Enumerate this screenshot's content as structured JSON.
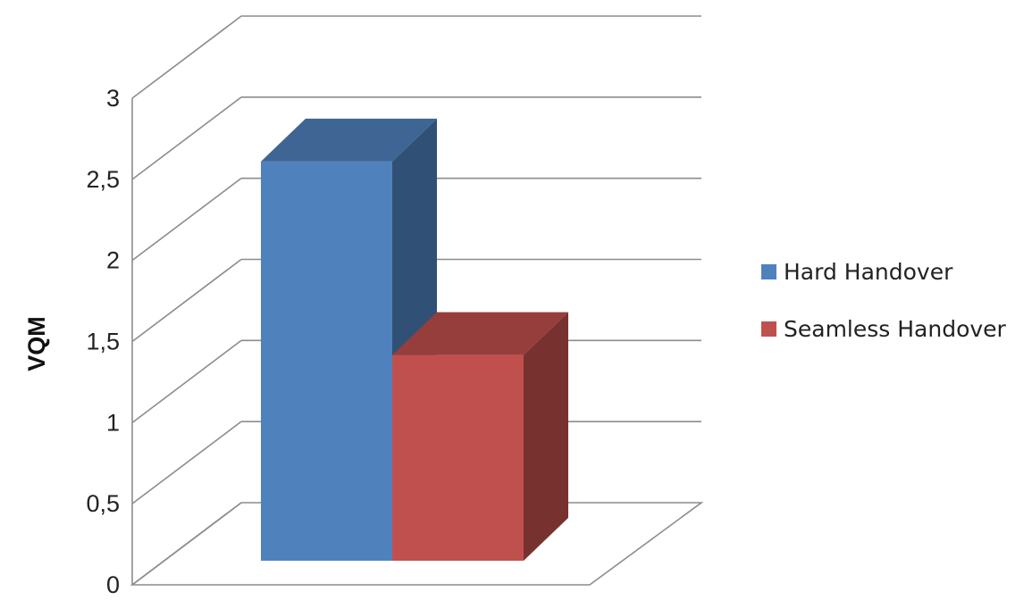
{
  "chart_data": {
    "type": "bar",
    "categories": [
      ""
    ],
    "series": [
      {
        "name": "Hard Handover",
        "values": [
          2.62
        ],
        "color": "#4f81bd"
      },
      {
        "name": "Seamless Handover",
        "values": [
          1.35
        ],
        "color": "#c0504d"
      }
    ],
    "title": "",
    "xlabel": "",
    "ylabel": "VQM",
    "ylim": [
      0,
      3
    ],
    "yticks": [
      {
        "value": 0,
        "label": "0"
      },
      {
        "value": 0.5,
        "label": "0,5"
      },
      {
        "value": 1,
        "label": "1"
      },
      {
        "value": 1.5,
        "label": "1,5"
      },
      {
        "value": 2,
        "label": "2"
      },
      {
        "value": 2.5,
        "label": "2,5"
      },
      {
        "value": 3,
        "label": "3"
      }
    ],
    "grid": true,
    "three_d": true,
    "legend_position": "right"
  }
}
